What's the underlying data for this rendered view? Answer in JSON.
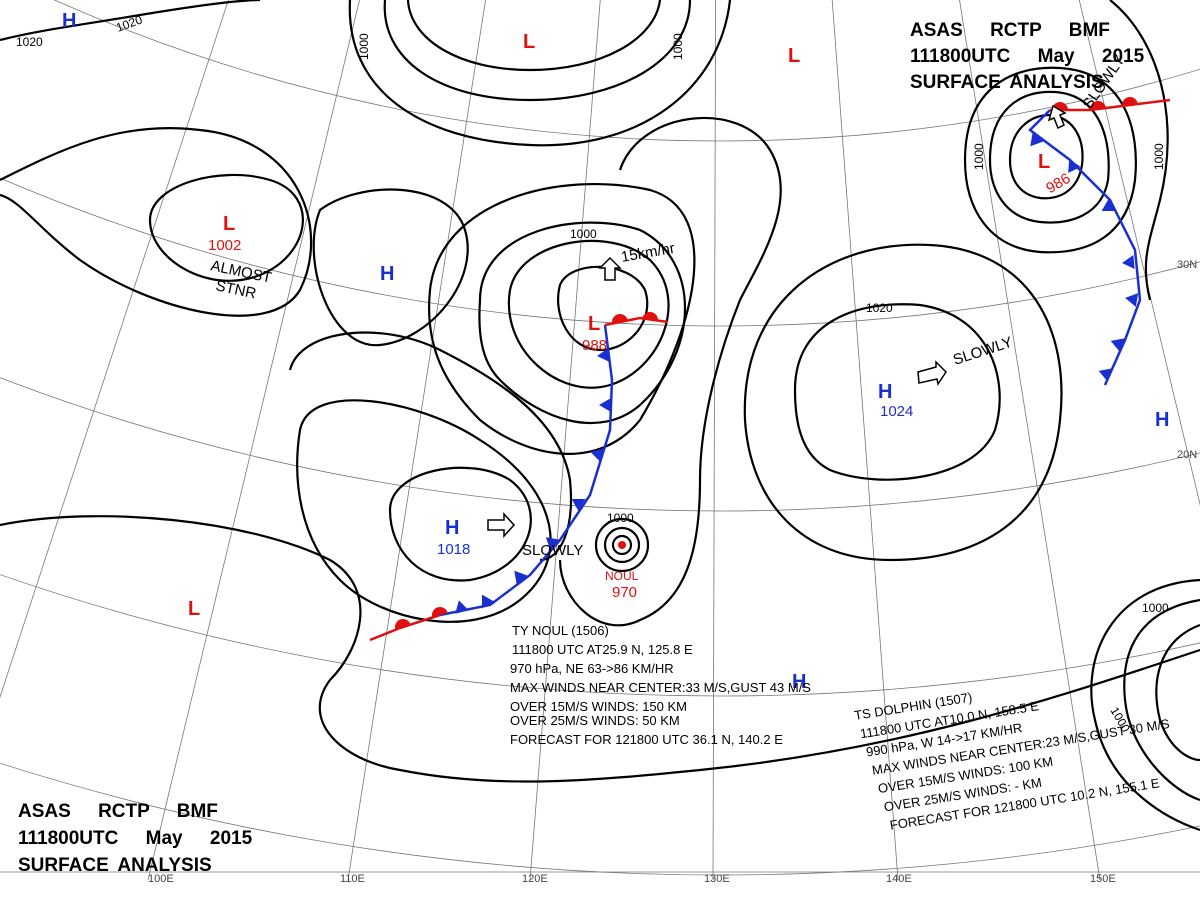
{
  "title_top": {
    "lines": [
      "ASAS RCTP BMF",
      "111800UTC May 2015",
      "SURFACE ANALYSIS"
    ]
  },
  "title_bottom": {
    "lines": [
      "ASAS RCTP BMF",
      "111800UTC May 2015",
      "SURFACE ANALYSIS"
    ]
  },
  "centers": [
    {
      "kind": "H"
    },
    {
      "kind": "L"
    },
    {
      "kind": "L"
    },
    {
      "kind": "L",
      "pressure": "1002"
    },
    {
      "kind": "H"
    },
    {
      "kind": "L",
      "pressure": "986"
    },
    {
      "kind": "L",
      "pressure": "988"
    },
    {
      "kind": "H",
      "pressure": "1024"
    },
    {
      "kind": "H"
    },
    {
      "kind": "H",
      "pressure": "1018"
    },
    {
      "kind": "L"
    },
    {
      "kind": "H"
    },
    {
      "kind": "NOUL",
      "pressure": "970"
    }
  ],
  "annotations": [
    "ALMOST",
    "STNR",
    "SLOWLY",
    "SLOWLY",
    "SLOWLY",
    "15km/hr"
  ],
  "isobar_labels": [
    "1020",
    "1020",
    "1000",
    "1000",
    "1000",
    "1020",
    "1000",
    "1000",
    "1000",
    "1000",
    "1000"
  ],
  "typhoon_noul": {
    "lines": [
      "TY  NOUL  (1506)",
      "111800 UTC  AT25.9 N, 125.8 E",
      "970 hPa, NE  63->86 KM/HR",
      "MAX WINDS NEAR CENTER:33 M/S,GUST 43 M/S",
      "OVER 15M/S WINDS: 150 KM",
      "OVER 25M/S WINDS: 50 KM",
      "FORECAST FOR 121800 UTC 36.1 N, 140.2 E"
    ]
  },
  "storm_dolphin": {
    "lines": [
      "TS  DOLPHIN  (1507)",
      "111800 UTC  AT10.0 N, 158.5 E",
      "990 hPa, W  14->17 KM/HR",
      "MAX WINDS NEAR CENTER:23 M/S,GUST 30 M/S",
      "OVER 15M/S WINDS: 100 KM",
      "OVER 25M/S WINDS: - KM",
      "FORECAST FOR 121800 UTC 10.2 N, 155.1 E"
    ]
  },
  "longitudes": [
    "100E",
    "110E",
    "120E",
    "130E",
    "140E",
    "150E"
  ],
  "latitudes": [
    "30N",
    "20N"
  ]
}
